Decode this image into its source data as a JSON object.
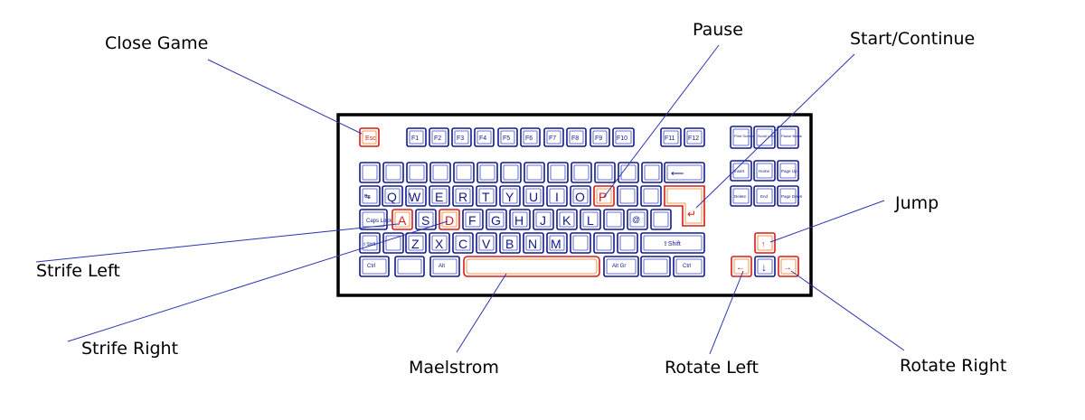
{
  "callouts": {
    "close_game": "Close Game",
    "pause": "Pause",
    "start_continue": "Start/Continue",
    "jump": "Jump",
    "strife_left": "Strife Left",
    "strife_right": "Strife Right",
    "maelstrom": "Maelstrom",
    "rotate_left": "Rotate Left",
    "rotate_right": "Rotate Right"
  },
  "keys": {
    "esc": "Esc",
    "f1": "F1",
    "f2": "F2",
    "f3": "F3",
    "f4": "F4",
    "f5": "F5",
    "f6": "F6",
    "f7": "F7",
    "f8": "F8",
    "f9": "F9",
    "f10": "F10",
    "f11": "F11",
    "f12": "F12",
    "print": "Print Screen SysRq",
    "scroll": "Scroll Lock",
    "pause": "Pause Break",
    "insert": "Insert",
    "home": "Home",
    "pgup": "Page Up",
    "delete": "Delete",
    "end": "End",
    "pgdn": "Page Down",
    "q": "Q",
    "w": "W",
    "e": "E",
    "r": "R",
    "t": "T",
    "y": "Y",
    "u": "U",
    "i": "I",
    "o": "O",
    "p": "P",
    "a": "A",
    "s": "S",
    "d": "D",
    "f": "F",
    "g": "G",
    "h": "H",
    "j": "J",
    "k": "K",
    "l": "L",
    "z": "Z",
    "x": "X",
    "c": "C",
    "v": "V",
    "b": "B",
    "n": "N",
    "m": "M",
    "caps": "Caps Lock",
    "shift_l": "⇧Shift",
    "shift_r": "⇧Shift",
    "ctrl_l": "Ctrl",
    "alt": "Alt",
    "altgr": "Alt Gr",
    "ctrl_r": "Ctrl",
    "tab": "↹",
    "backspace": "⟵",
    "enter": "↵",
    "at": "@",
    "up": "↑",
    "down": "↓",
    "left": "←",
    "right": "→"
  },
  "colors": {
    "key_outline": "#101a8c",
    "highlight": "#d81c1c",
    "leader_line": "#2a35b0"
  }
}
